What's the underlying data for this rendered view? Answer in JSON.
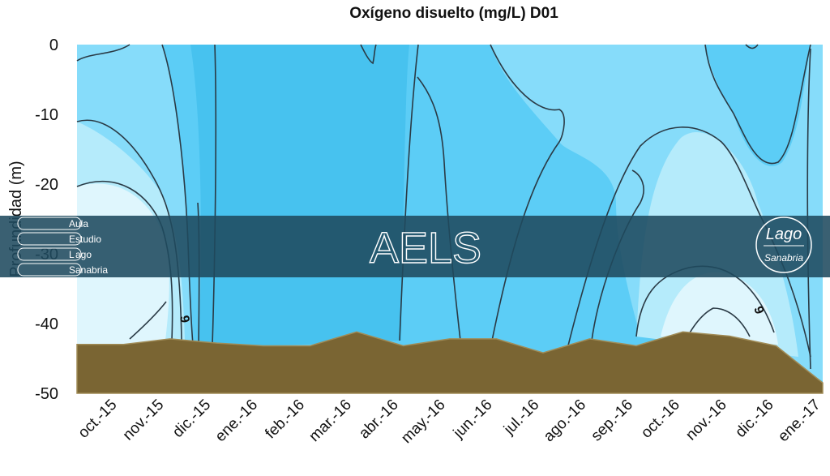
{
  "chart_data": {
    "type": "contour",
    "title": "Oxígeno  disuelto (mg/L) D01",
    "ylabel": "Profundidad (m)",
    "xlabel": "",
    "categories": [
      "oct.-15",
      "nov.-15",
      "dic.-15",
      "ene.-16",
      "feb.-16",
      "mar.-16",
      "abr.-16",
      "may.-16",
      "jun.-16",
      "jul.-16",
      "ago.-16",
      "sep.-16",
      "oct.-16",
      "nov.-16",
      "dic.-16",
      "ene.-17"
    ],
    "y_ticks": [
      0,
      -10,
      -20,
      -30,
      -40,
      -50
    ],
    "ylim": [
      -50,
      0
    ],
    "contour_labels": [
      "9",
      "9"
    ],
    "bottom_depth_m": [
      -43,
      -43,
      -42.2,
      -42.8,
      -43.2,
      -43.2,
      -41.2,
      -43.2,
      -42.2,
      -42.2,
      -44.2,
      -42.2,
      -43.2,
      -41.2,
      -41.8,
      -43.2,
      -48.5
    ],
    "grid": false,
    "colors": {
      "o2_very_low": "#dff6fd",
      "o2_low": "#b5ebfb",
      "o2_mid": "#86dcfa",
      "o2_high": "#5ccdf6",
      "o2_very_high": "#47c2ef",
      "sediment": "#7a6533",
      "contour_line": "#2a3a45"
    }
  },
  "watermark": {
    "acronym": "AELS",
    "lines": [
      {
        "initial": "A",
        "rest": "ula"
      },
      {
        "initial": "E",
        "rest": "studio"
      },
      {
        "initial": "L",
        "rest": "ago"
      },
      {
        "initial": "S",
        "rest": "anabria"
      }
    ],
    "logo_title": "Lago",
    "logo_subtitle": "Sanabria"
  }
}
